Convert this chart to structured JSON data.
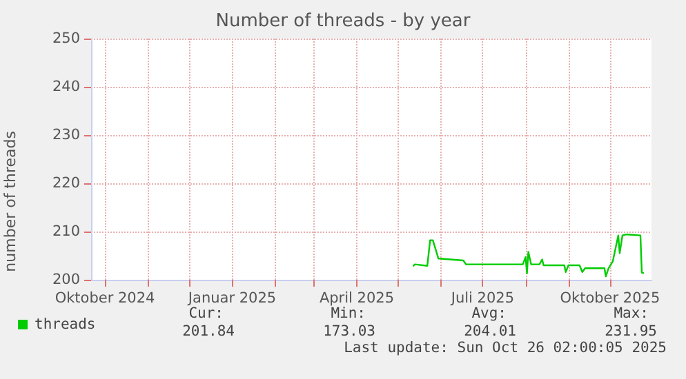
{
  "chart_data": {
    "type": "line",
    "title": "Number of threads - by year",
    "ylabel": "number of threads",
    "x": [
      "2025-05-12",
      "2025-05-13",
      "2025-05-22",
      "2025-05-24",
      "2025-05-26",
      "2025-05-30",
      "2025-05-31",
      "2025-06-17",
      "2025-06-19",
      "2025-07-30",
      "2025-08-01",
      "2025-08-02",
      "2025-08-03",
      "2025-08-05",
      "2025-08-11",
      "2025-08-13",
      "2025-08-14",
      "2025-08-29",
      "2025-08-30",
      "2025-09-01",
      "2025-09-09",
      "2025-09-11",
      "2025-09-13",
      "2025-09-27",
      "2025-09-28",
      "2025-09-30",
      "2025-10-03",
      "2025-10-07",
      "2025-10-08",
      "2025-10-10",
      "2025-10-13",
      "2025-10-23",
      "2025-10-24",
      "2025-10-25"
    ],
    "series": [
      {
        "name": "threads",
        "color": "#00cc00",
        "values": [
          202.9,
          203.2,
          202.9,
          208.2,
          208.2,
          204.4,
          204.4,
          204.0,
          203.2,
          203.2,
          204.7,
          201.3,
          205.8,
          203.2,
          203.2,
          204.2,
          203.0,
          203.0,
          201.6,
          203.0,
          203.0,
          201.6,
          202.4,
          202.4,
          200.7,
          202.4,
          203.8,
          209.2,
          205.5,
          209.2,
          209.4,
          209.2,
          201.5,
          201.4
        ]
      }
    ],
    "xlim": [
      "2024-09-21",
      "2025-10-31"
    ],
    "xticks": [
      {
        "value": "2024-10-01",
        "label": "Oktober 2024"
      },
      {
        "value": "2024-11-01",
        "label": null
      },
      {
        "value": "2024-12-01",
        "label": null
      },
      {
        "value": "2025-01-01",
        "label": "Januar 2025"
      },
      {
        "value": "2025-02-01",
        "label": null
      },
      {
        "value": "2025-03-01",
        "label": null
      },
      {
        "value": "2025-04-01",
        "label": "April 2025"
      },
      {
        "value": "2025-05-01",
        "label": null
      },
      {
        "value": "2025-06-01",
        "label": null
      },
      {
        "value": "2025-07-01",
        "label": "Juli 2025"
      },
      {
        "value": "2025-08-01",
        "label": null
      },
      {
        "value": "2025-09-01",
        "label": null
      },
      {
        "value": "2025-10-01",
        "label": "Oktober 2025"
      }
    ],
    "ylim": [
      200,
      250
    ],
    "yticks": [
      200,
      210,
      220,
      230,
      240,
      250
    ],
    "grid": true,
    "legend": "bottom left",
    "marker": "none",
    "line_style": "solid",
    "annotations": [
      "Cur:",
      "Min:",
      "Avg:",
      "Max:",
      "201.84",
      "173.03",
      "204.01",
      "231.95",
      "Last update: Sun Oct 26 02:00:05 2025"
    ]
  }
}
